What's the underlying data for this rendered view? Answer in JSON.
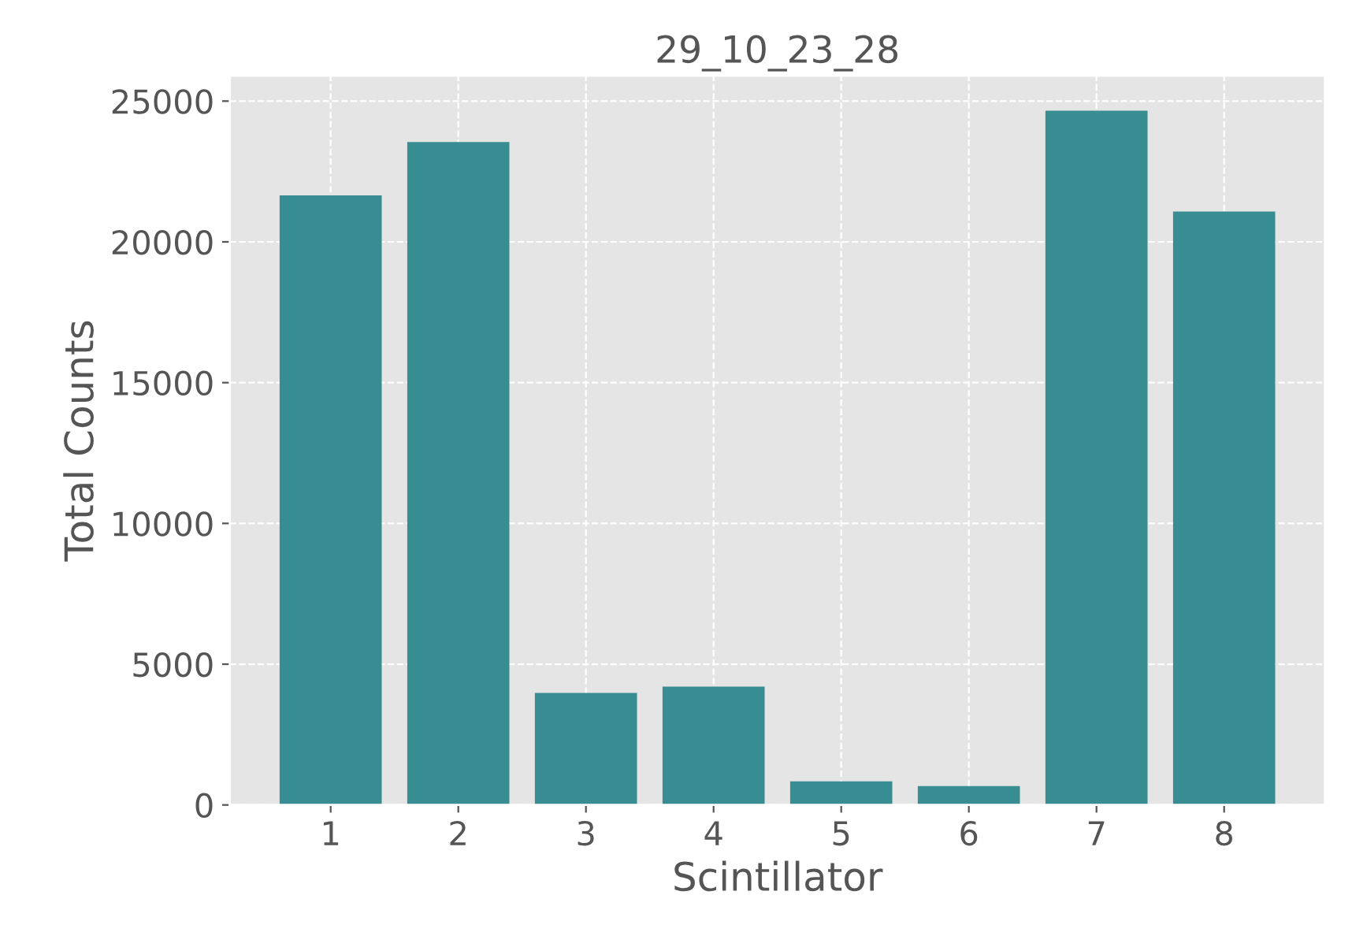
{
  "chart_data": {
    "type": "bar",
    "title": "29_10_23_28",
    "xlabel": "Scintillator",
    "ylabel": "Total Counts",
    "categories": [
      "1",
      "2",
      "3",
      "4",
      "5",
      "6",
      "7",
      "8"
    ],
    "values": [
      21650,
      23550,
      3980,
      4200,
      840,
      670,
      24660,
      21080
    ],
    "color": "#378d91",
    "ylim": [
      0,
      25900
    ],
    "yticks": [
      0,
      5000,
      10000,
      15000,
      20000,
      25000
    ],
    "grid": true,
    "line_style": "dashed"
  }
}
